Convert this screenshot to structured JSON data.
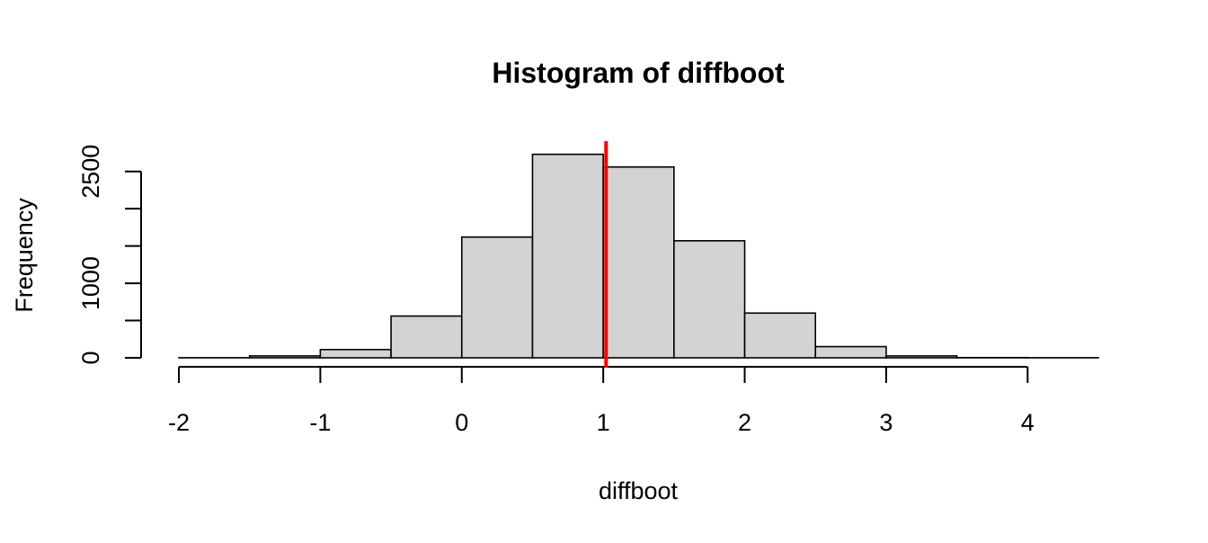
{
  "chart_data": {
    "type": "bar",
    "title": "Histogram of diffboot",
    "xlabel": "diffboot",
    "ylabel": "Frequency",
    "bins": [
      {
        "start": -2.0,
        "end": -1.5,
        "count": 1
      },
      {
        "start": -1.5,
        "end": -1.0,
        "count": 25
      },
      {
        "start": -1.0,
        "end": -0.5,
        "count": 110
      },
      {
        "start": -0.5,
        "end": 0.0,
        "count": 560
      },
      {
        "start": 0.0,
        "end": 0.5,
        "count": 1620
      },
      {
        "start": 0.5,
        "end": 1.0,
        "count": 2730
      },
      {
        "start": 1.0,
        "end": 1.5,
        "count": 2560
      },
      {
        "start": 1.5,
        "end": 2.0,
        "count": 1570
      },
      {
        "start": 2.0,
        "end": 2.5,
        "count": 600
      },
      {
        "start": 2.5,
        "end": 3.0,
        "count": 150
      },
      {
        "start": 3.0,
        "end": 3.5,
        "count": 25
      },
      {
        "start": 3.5,
        "end": 4.0,
        "count": 3
      },
      {
        "start": 4.0,
        "end": 4.5,
        "count": 1
      }
    ],
    "xlim": [
      -2,
      4.5
    ],
    "ylim": [
      0,
      2750
    ],
    "x_ticks": [
      {
        "value": -2,
        "label": "-2"
      },
      {
        "value": -1,
        "label": "-1"
      },
      {
        "value": 0,
        "label": "0"
      },
      {
        "value": 1,
        "label": "1"
      },
      {
        "value": 2,
        "label": "2"
      },
      {
        "value": 3,
        "label": "3"
      },
      {
        "value": 4,
        "label": "4"
      }
    ],
    "y_ticks": [
      {
        "value": 0,
        "label": "0"
      },
      {
        "value": 500,
        "label": ""
      },
      {
        "value": 1000,
        "label": "1000"
      },
      {
        "value": 1500,
        "label": ""
      },
      {
        "value": 2000,
        "label": ""
      },
      {
        "value": 2500,
        "label": "2500"
      }
    ],
    "reference_line": {
      "x": 1.02,
      "color": "#ff0000"
    },
    "bar_fill": "#d3d3d3",
    "bar_stroke": "#000000",
    "grid": false,
    "legend": "none"
  }
}
